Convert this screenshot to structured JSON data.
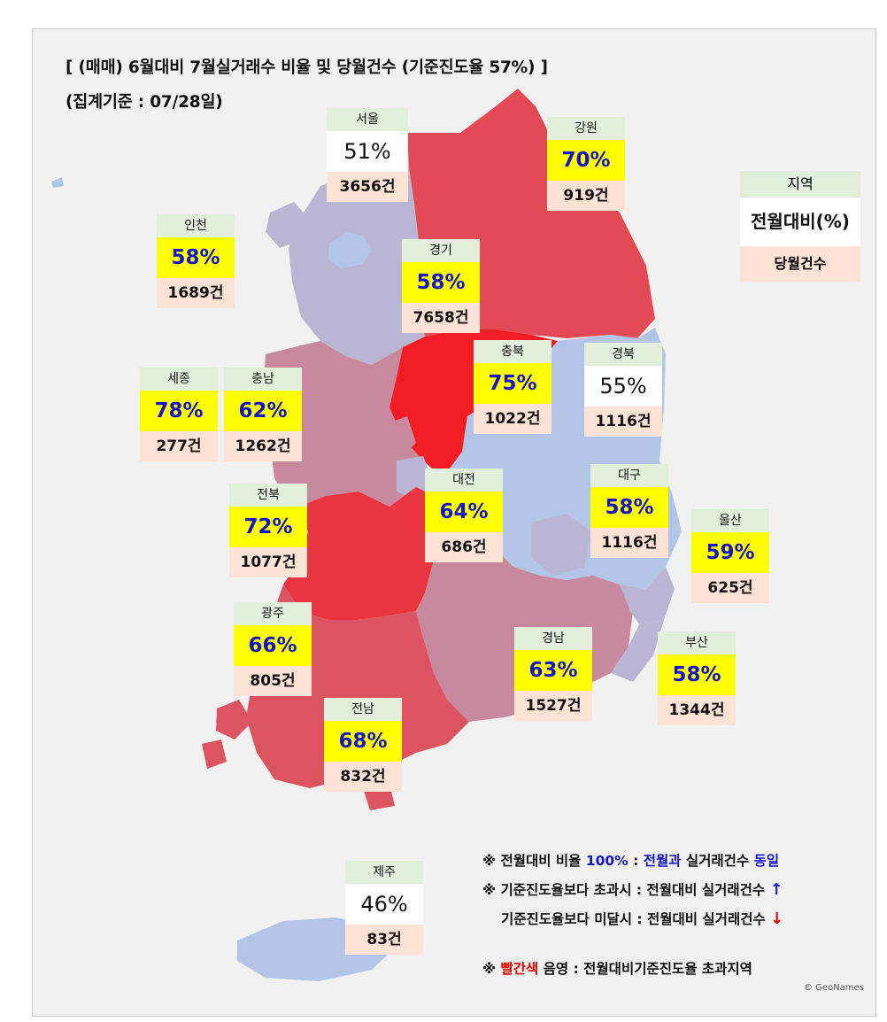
{
  "title": {
    "line1": "[ (매매) 6월대비 7월실거래수 비율 및 당월건수 (기준진도율 57%) ]",
    "line2": "(집계기준 : 07/28일)"
  },
  "colors": {
    "exceed_dark": "#f21c24",
    "exceed": "#e8353f",
    "exceed_light": "#dc5462",
    "mid": "#c8899f",
    "mauve_light": "#b9b6d2",
    "below": "#b2c5e6",
    "card_name_bg": "#e2efda",
    "card_pct_bg": "#ffff00",
    "card_count_bg": "#fde3d6"
  },
  "regions": [
    {
      "name": "서울",
      "pct": "51%",
      "count": "3656건",
      "exceeds": false
    },
    {
      "name": "강원",
      "pct": "70%",
      "count": "919건",
      "exceeds": true
    },
    {
      "name": "인천",
      "pct": "58%",
      "count": "1689건",
      "exceeds": true
    },
    {
      "name": "경기",
      "pct": "58%",
      "count": "7658건",
      "exceeds": true
    },
    {
      "name": "충북",
      "pct": "75%",
      "count": "1022건",
      "exceeds": true
    },
    {
      "name": "경북",
      "pct": "55%",
      "count": "1116건",
      "exceeds": false
    },
    {
      "name": "세종",
      "pct": "78%",
      "count": "277건",
      "exceeds": true
    },
    {
      "name": "충남",
      "pct": "62%",
      "count": "1262건",
      "exceeds": true
    },
    {
      "name": "대전",
      "pct": "64%",
      "count": "686건",
      "exceeds": true
    },
    {
      "name": "대구",
      "pct": "58%",
      "count": "1116건",
      "exceeds": true
    },
    {
      "name": "전북",
      "pct": "72%",
      "count": "1077건",
      "exceeds": true
    },
    {
      "name": "울산",
      "pct": "59%",
      "count": "625건",
      "exceeds": true
    },
    {
      "name": "광주",
      "pct": "66%",
      "count": "805건",
      "exceeds": true
    },
    {
      "name": "경남",
      "pct": "63%",
      "count": "1527건",
      "exceeds": true
    },
    {
      "name": "부산",
      "pct": "58%",
      "count": "1344건",
      "exceeds": true
    },
    {
      "name": "전남",
      "pct": "68%",
      "count": "832건",
      "exceeds": true
    },
    {
      "name": "제주",
      "pct": "46%",
      "count": "83건",
      "exceeds": false
    }
  ],
  "legend": {
    "name": "지역",
    "pct": "전월대비(%)",
    "count": "당월건수"
  },
  "notes": {
    "n1_prefix": "※ 전월대비 비율 ",
    "n1_pct": "100%",
    "n1_mid": " : ",
    "n1_blue": "전월과",
    "n1_text": " 실거래건수 ",
    "n1_same": "동일",
    "n2": "※ 기준진도율보다 초과시 : 전월대비 실거래건수 ",
    "n2_arrow": "↑",
    "n3": "기준진도율보다 미달시 : 전월대비 실거래건수 ",
    "n3_arrow": "↓",
    "n4_prefix": "※ ",
    "n4_red": "빨간색",
    "n4_text": " 음영 : 전월대비기준진도율 초과지역"
  },
  "credit": "© GeoNames"
}
